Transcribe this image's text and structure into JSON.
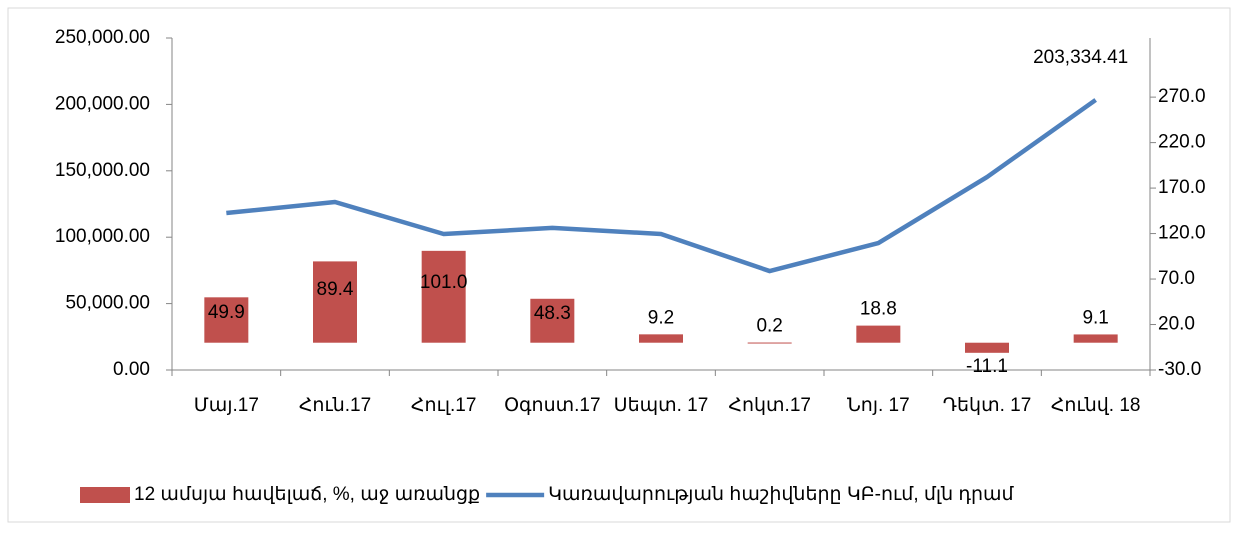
{
  "chart_data": {
    "type": "bar-line",
    "categories": [
      "Մայ.17",
      "Հուն.17",
      "Հուլ.17",
      "Օգոստ.17",
      "Սեպտ. 17",
      "Հոկտ.17",
      "Նոյ. 17",
      "Դեկտ. 17",
      "Հունվ. 18"
    ],
    "series": [
      {
        "name": "12 ամսյա հավելաճ, %, աջ առանցք",
        "type": "bar",
        "axis": "y2",
        "color": "#c0504d",
        "values": [
          49.9,
          89.4,
          101.0,
          48.3,
          9.2,
          0.2,
          18.8,
          -11.1,
          9.1
        ],
        "value_labels": [
          "49.9",
          "89.4",
          "101.0",
          "48.3",
          "9.2",
          "0.2",
          "18.8",
          "-11.1",
          "9.1"
        ]
      },
      {
        "name": "Կառավարության հաշիվները ԿԲ-ում, մլն դրամ",
        "type": "line",
        "axis": "y",
        "color": "#4f81bd",
        "values": [
          118200,
          126500,
          102400,
          107000,
          102400,
          74500,
          95600,
          145300,
          203334.41
        ],
        "value_labels": [
          null,
          null,
          null,
          null,
          null,
          null,
          null,
          null,
          "203,334.41"
        ]
      }
    ],
    "ylim": [
      0,
      250000
    ],
    "yticks": [
      {
        "value": 0,
        "label": "0.00"
      },
      {
        "value": 50000,
        "label": "50,000.00"
      },
      {
        "value": 100000,
        "label": "100,000.00"
      },
      {
        "value": 150000,
        "label": "150,000.00"
      },
      {
        "value": 200000,
        "label": "200,000.00"
      },
      {
        "value": 250000,
        "label": "250,000.00"
      }
    ],
    "y2lim": [
      -30,
      335
    ],
    "y2ticks": [
      {
        "value": -30,
        "label": "-30.0"
      },
      {
        "value": 20,
        "label": "20.0"
      },
      {
        "value": 70,
        "label": "70.0"
      },
      {
        "value": 120,
        "label": "120.0"
      },
      {
        "value": 170,
        "label": "170.0"
      },
      {
        "value": 220,
        "label": "220.0"
      },
      {
        "value": 270,
        "label": "270.0"
      }
    ],
    "legend": "bottom"
  }
}
